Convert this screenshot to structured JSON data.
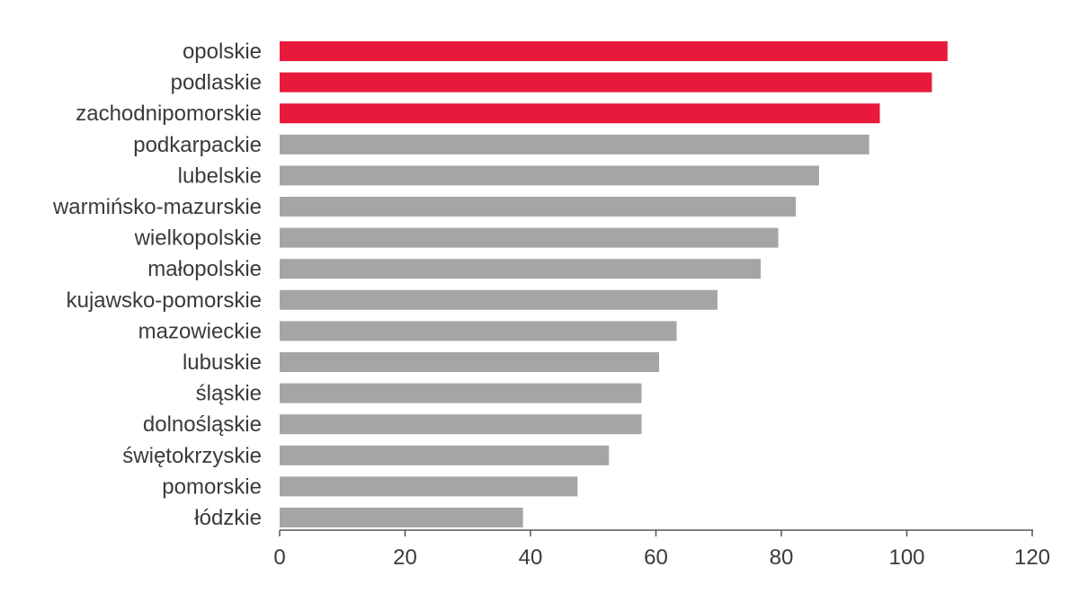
{
  "chart_data": {
    "type": "bar",
    "orientation": "horizontal",
    "categories": [
      "opolskie",
      "podlaskie",
      "zachodnipomorskie",
      "podkarpackie",
      "lubelskie",
      "warmińsko-mazurskie",
      "wielkopolskie",
      "małopolskie",
      "kujawsko-pomorskie",
      "mazowieckie",
      "lubuskie",
      "śląskie",
      "dolnośląskie",
      "świętokrzyskie",
      "pomorskie",
      "łódzkie"
    ],
    "values": [
      106.5,
      104,
      95.7,
      94,
      86,
      82.3,
      79.5,
      76.7,
      69.8,
      63.3,
      60.5,
      57.7,
      57.7,
      52.5,
      47.5,
      38.8
    ],
    "highlighted": [
      true,
      true,
      true,
      false,
      false,
      false,
      false,
      false,
      false,
      false,
      false,
      false,
      false,
      false,
      false,
      false
    ],
    "colors": {
      "highlight": "#e8193a",
      "default": "#a5a5a8",
      "axis": "#555555",
      "text": "#3a3a3a"
    },
    "title": "",
    "xlabel": "",
    "ylabel": "",
    "xlim": [
      0,
      120
    ],
    "xticks": [
      0,
      20,
      40,
      60,
      80,
      100,
      120
    ],
    "grid": false,
    "legend": "none"
  }
}
